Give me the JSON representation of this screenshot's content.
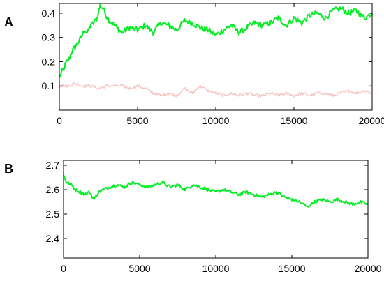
{
  "figure": {
    "panels": [
      "A",
      "B"
    ]
  },
  "chart_data": [
    {
      "panel": "A",
      "type": "line",
      "title": "",
      "xlabel": "",
      "ylabel": "",
      "xlim": [
        0,
        20000
      ],
      "ylim": [
        0.0,
        0.44
      ],
      "xticks": [
        0,
        5000,
        10000,
        15000,
        20000
      ],
      "yticks": [
        0.1,
        0.2,
        0.3,
        0.4
      ],
      "ytick_labels": [
        "0.1",
        "0.2",
        "0.3",
        "0.4"
      ],
      "grid": false,
      "legend": "none",
      "series": [
        {
          "color": "#00ee22",
          "x": [
            0,
            200,
            400,
            600,
            800,
            1000,
            1200,
            1400,
            1600,
            1800,
            2000,
            2200,
            2400,
            2600,
            2800,
            3000,
            3200,
            3500,
            4000,
            4500,
            5000,
            5500,
            6000,
            6500,
            7000,
            7500,
            8000,
            8500,
            9000,
            9500,
            10000,
            10500,
            11000,
            11500,
            12000,
            12500,
            13000,
            13500,
            14000,
            14500,
            15000,
            15500,
            16000,
            16500,
            17000,
            17500,
            18000,
            18500,
            19000,
            19500,
            20000
          ],
          "y": [
            0.14,
            0.16,
            0.19,
            0.21,
            0.24,
            0.26,
            0.28,
            0.3,
            0.33,
            0.32,
            0.35,
            0.36,
            0.38,
            0.43,
            0.42,
            0.39,
            0.37,
            0.35,
            0.32,
            0.34,
            0.33,
            0.35,
            0.32,
            0.36,
            0.35,
            0.33,
            0.37,
            0.36,
            0.34,
            0.33,
            0.31,
            0.33,
            0.35,
            0.32,
            0.34,
            0.36,
            0.35,
            0.36,
            0.38,
            0.35,
            0.38,
            0.36,
            0.39,
            0.4,
            0.38,
            0.41,
            0.42,
            0.4,
            0.41,
            0.38,
            0.4
          ]
        },
        {
          "color": "#f7c5c0",
          "x": [
            0,
            500,
            1000,
            1500,
            2000,
            2500,
            3000,
            3500,
            4000,
            4500,
            5000,
            5500,
            6000,
            6500,
            7000,
            7500,
            8000,
            8500,
            9000,
            9500,
            10000,
            10500,
            11000,
            11500,
            12000,
            12500,
            13000,
            13500,
            14000,
            14500,
            15000,
            15500,
            16000,
            16500,
            17000,
            17500,
            18000,
            18500,
            19000,
            19500,
            20000
          ],
          "y": [
            0.1,
            0.1,
            0.11,
            0.1,
            0.1,
            0.09,
            0.1,
            0.1,
            0.1,
            0.09,
            0.1,
            0.09,
            0.07,
            0.06,
            0.07,
            0.06,
            0.09,
            0.07,
            0.1,
            0.08,
            0.07,
            0.06,
            0.07,
            0.06,
            0.07,
            0.06,
            0.06,
            0.07,
            0.06,
            0.07,
            0.06,
            0.07,
            0.06,
            0.07,
            0.07,
            0.06,
            0.07,
            0.08,
            0.07,
            0.08,
            0.07
          ]
        }
      ]
    },
    {
      "panel": "B",
      "type": "line",
      "title": "",
      "xlabel": "",
      "ylabel": "",
      "xlim": [
        0,
        20000
      ],
      "ylim": [
        2.32,
        2.72
      ],
      "xticks": [
        0,
        5000,
        10000,
        15000,
        20000
      ],
      "yticks": [
        2.4,
        2.5,
        2.6,
        2.7
      ],
      "ytick_labels": [
        "2.4",
        "2.5",
        "2.6",
        "2.7"
      ],
      "grid": false,
      "legend": "none",
      "series": [
        {
          "color": "#00ee22",
          "x": [
            0,
            200,
            500,
            800,
            1100,
            1400,
            1700,
            2000,
            2300,
            2600,
            3000,
            3500,
            4000,
            4500,
            5000,
            5500,
            6000,
            6500,
            7000,
            7500,
            8000,
            8500,
            9000,
            9500,
            10000,
            10500,
            11000,
            11500,
            12000,
            12500,
            13000,
            13500,
            14000,
            14500,
            15000,
            15500,
            16000,
            16500,
            17000,
            17500,
            18000,
            18500,
            19000,
            19500,
            20000
          ],
          "y": [
            2.66,
            2.63,
            2.62,
            2.6,
            2.59,
            2.58,
            2.59,
            2.56,
            2.59,
            2.6,
            2.61,
            2.62,
            2.61,
            2.63,
            2.62,
            2.61,
            2.62,
            2.63,
            2.61,
            2.62,
            2.6,
            2.62,
            2.61,
            2.6,
            2.59,
            2.6,
            2.59,
            2.58,
            2.59,
            2.58,
            2.57,
            2.58,
            2.59,
            2.57,
            2.56,
            2.55,
            2.53,
            2.55,
            2.56,
            2.55,
            2.56,
            2.55,
            2.54,
            2.55,
            2.54
          ]
        }
      ]
    }
  ]
}
